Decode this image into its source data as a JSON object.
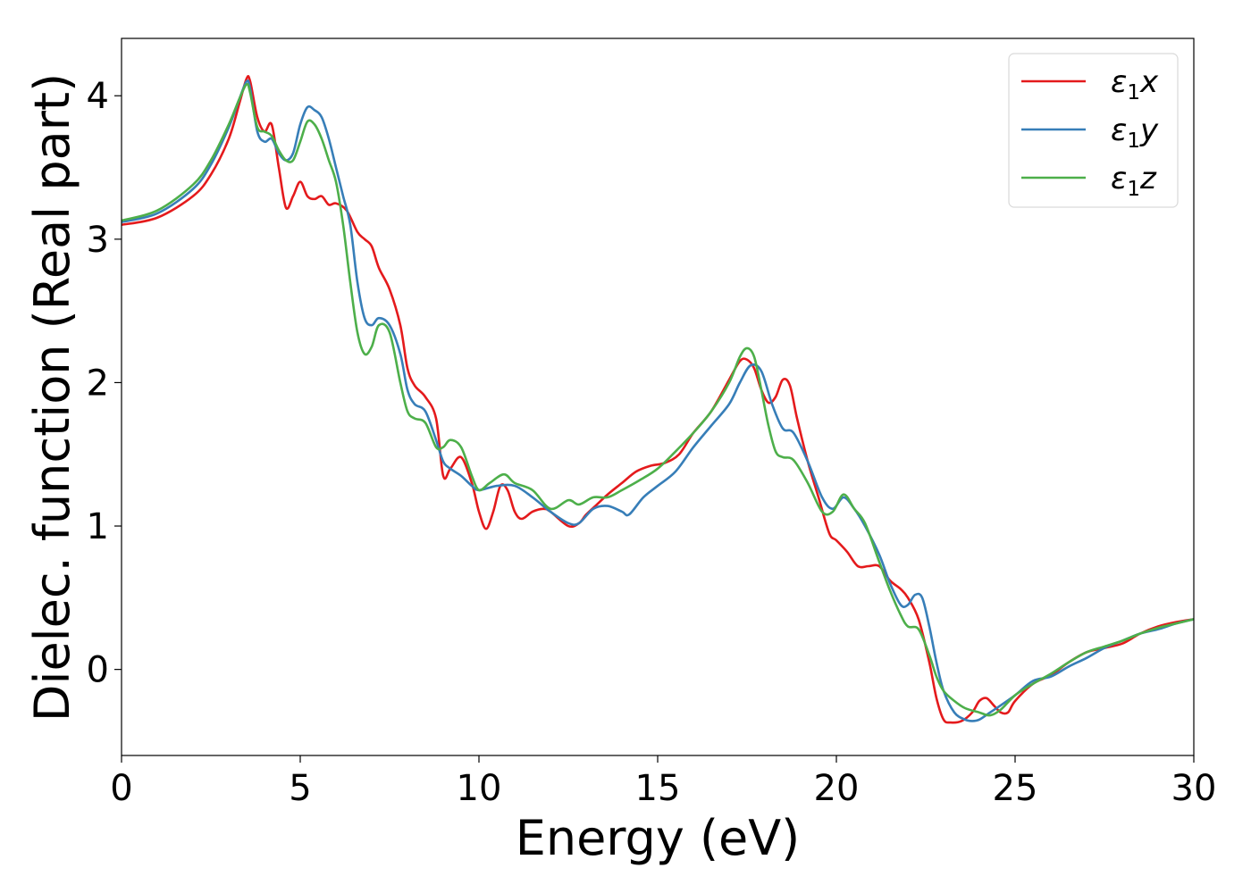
{
  "chart_data": {
    "type": "line",
    "title": "",
    "xlabel": "Energy (eV)",
    "ylabel": "Dielec. function (Real part)",
    "xlim": [
      0,
      30
    ],
    "ylim": [
      -0.6,
      4.4
    ],
    "xticks": [
      0,
      5,
      10,
      15,
      20,
      25,
      30
    ],
    "yticks": [
      0,
      1,
      2,
      3,
      4
    ],
    "grid": false,
    "legend_position": "top-right",
    "series": [
      {
        "name": "ε₁x",
        "legend_base": "ε",
        "legend_sub": "1",
        "legend_var": "x",
        "color": "#e41a1c",
        "x": [
          0,
          1,
          2,
          2.5,
          3,
          3.3,
          3.5,
          3.6,
          3.8,
          4.0,
          4.2,
          4.4,
          4.6,
          4.8,
          5.0,
          5.2,
          5.4,
          5.6,
          5.8,
          6.0,
          6.3,
          6.6,
          6.8,
          7.0,
          7.2,
          7.5,
          7.8,
          8.0,
          8.2,
          8.5,
          8.8,
          9.0,
          9.2,
          9.5,
          9.8,
          10.0,
          10.2,
          10.4,
          10.6,
          10.8,
          11.0,
          11.2,
          11.5,
          11.8,
          12.0,
          12.5,
          12.8,
          13.0,
          13.3,
          13.6,
          14.0,
          14.4,
          14.8,
          15.2,
          15.6,
          16.0,
          16.5,
          17.0,
          17.3,
          17.5,
          17.7,
          17.9,
          18.1,
          18.3,
          18.5,
          18.7,
          18.9,
          19.2,
          19.5,
          19.8,
          20.0,
          20.3,
          20.6,
          20.9,
          21.2,
          21.5,
          21.8,
          22.0,
          22.3,
          22.6,
          22.8,
          23.0,
          23.2,
          23.5,
          23.8,
          24.0,
          24.2,
          24.4,
          24.6,
          24.8,
          25.0,
          25.5,
          26.0,
          26.5,
          27.0,
          27.5,
          28.0,
          28.5,
          29.0,
          29.5,
          30.0
        ],
        "y": [
          3.1,
          3.15,
          3.3,
          3.45,
          3.7,
          3.95,
          4.12,
          4.1,
          3.85,
          3.75,
          3.8,
          3.5,
          3.22,
          3.3,
          3.4,
          3.3,
          3.28,
          3.3,
          3.24,
          3.25,
          3.2,
          3.05,
          3.0,
          2.95,
          2.8,
          2.65,
          2.4,
          2.1,
          1.98,
          1.9,
          1.75,
          1.35,
          1.4,
          1.48,
          1.3,
          1.1,
          0.98,
          1.1,
          1.28,
          1.25,
          1.1,
          1.05,
          1.1,
          1.12,
          1.1,
          1.0,
          1.02,
          1.08,
          1.15,
          1.22,
          1.3,
          1.38,
          1.42,
          1.44,
          1.5,
          1.65,
          1.8,
          2.02,
          2.15,
          2.16,
          2.1,
          1.95,
          1.86,
          1.9,
          2.02,
          1.98,
          1.75,
          1.45,
          1.2,
          0.95,
          0.9,
          0.82,
          0.72,
          0.72,
          0.72,
          0.62,
          0.56,
          0.5,
          0.35,
          0.05,
          -0.2,
          -0.35,
          -0.37,
          -0.36,
          -0.3,
          -0.22,
          -0.2,
          -0.25,
          -0.3,
          -0.3,
          -0.22,
          -0.1,
          -0.04,
          0.05,
          0.12,
          0.15,
          0.18,
          0.25,
          0.3,
          0.33,
          0.35
        ]
      },
      {
        "name": "ε₁y",
        "legend_base": "ε",
        "legend_sub": "1",
        "legend_var": "y",
        "color": "#377eb8",
        "x": [
          0,
          1,
          2,
          2.5,
          3,
          3.3,
          3.5,
          3.6,
          3.8,
          4.0,
          4.2,
          4.4,
          4.6,
          4.8,
          5.0,
          5.2,
          5.4,
          5.6,
          5.8,
          6.0,
          6.2,
          6.4,
          6.6,
          6.8,
          7.0,
          7.2,
          7.5,
          7.8,
          8.0,
          8.2,
          8.5,
          8.8,
          9.0,
          9.2,
          9.5,
          9.8,
          10.0,
          10.5,
          11.0,
          11.5,
          12.0,
          12.5,
          12.8,
          13.2,
          13.6,
          14.0,
          14.2,
          14.6,
          15.0,
          15.5,
          16.0,
          16.5,
          17.0,
          17.3,
          17.6,
          17.9,
          18.2,
          18.5,
          18.8,
          19.2,
          19.6,
          19.9,
          20.2,
          20.5,
          20.8,
          21.2,
          21.5,
          21.8,
          22.0,
          22.2,
          22.4,
          22.6,
          22.8,
          23.0,
          23.3,
          23.6,
          23.8,
          24.0,
          24.3,
          24.6,
          25.0,
          25.5,
          26.0,
          26.5,
          27.0,
          27.5,
          28.0,
          28.5,
          29.0,
          29.5,
          30.0
        ],
        "y": [
          3.12,
          3.18,
          3.35,
          3.52,
          3.78,
          3.98,
          4.1,
          4.05,
          3.75,
          3.68,
          3.7,
          3.6,
          3.55,
          3.6,
          3.8,
          3.92,
          3.9,
          3.85,
          3.7,
          3.5,
          3.3,
          3.1,
          2.7,
          2.45,
          2.4,
          2.45,
          2.4,
          2.2,
          1.95,
          1.85,
          1.8,
          1.6,
          1.45,
          1.4,
          1.35,
          1.28,
          1.25,
          1.28,
          1.28,
          1.2,
          1.1,
          1.02,
          1.02,
          1.12,
          1.14,
          1.1,
          1.08,
          1.2,
          1.28,
          1.38,
          1.55,
          1.7,
          1.85,
          2.0,
          2.12,
          2.08,
          1.85,
          1.68,
          1.65,
          1.45,
          1.2,
          1.12,
          1.2,
          1.12,
          1.0,
          0.8,
          0.6,
          0.45,
          0.45,
          0.52,
          0.5,
          0.3,
          0.05,
          -0.15,
          -0.3,
          -0.35,
          -0.36,
          -0.35,
          -0.3,
          -0.25,
          -0.18,
          -0.08,
          -0.05,
          0.02,
          0.08,
          0.15,
          0.2,
          0.25,
          0.28,
          0.32,
          0.35
        ]
      },
      {
        "name": "ε₁z",
        "legend_base": "ε",
        "legend_sub": "1",
        "legend_var": "z",
        "color": "#4daf4a",
        "x": [
          0,
          1,
          2,
          2.5,
          3,
          3.3,
          3.5,
          3.6,
          3.8,
          4.0,
          4.2,
          4.4,
          4.6,
          4.8,
          5.0,
          5.2,
          5.4,
          5.6,
          5.8,
          6.0,
          6.2,
          6.4,
          6.6,
          6.8,
          7.0,
          7.2,
          7.5,
          7.8,
          8.0,
          8.2,
          8.5,
          8.8,
          9.0,
          9.2,
          9.5,
          9.8,
          10.0,
          10.3,
          10.7,
          11.0,
          11.5,
          12.0,
          12.5,
          12.8,
          13.2,
          13.6,
          14.0,
          14.5,
          15.0,
          15.5,
          16.0,
          16.5,
          17.0,
          17.3,
          17.5,
          17.7,
          17.9,
          18.1,
          18.3,
          18.5,
          18.8,
          19.2,
          19.6,
          19.9,
          20.2,
          20.5,
          20.8,
          21.2,
          21.5,
          21.8,
          22.0,
          22.3,
          22.6,
          22.8,
          23.0,
          23.3,
          23.6,
          24.0,
          24.3,
          24.6,
          25.0,
          25.5,
          26.0,
          26.5,
          27.0,
          27.5,
          28.0,
          28.5,
          29.0,
          29.5,
          30.0
        ],
        "y": [
          3.13,
          3.2,
          3.38,
          3.55,
          3.8,
          3.98,
          4.08,
          4.02,
          3.78,
          3.75,
          3.72,
          3.62,
          3.55,
          3.55,
          3.68,
          3.82,
          3.8,
          3.7,
          3.55,
          3.4,
          3.1,
          2.7,
          2.35,
          2.2,
          2.25,
          2.4,
          2.35,
          2.0,
          1.8,
          1.75,
          1.72,
          1.55,
          1.55,
          1.6,
          1.55,
          1.35,
          1.25,
          1.3,
          1.36,
          1.3,
          1.25,
          1.12,
          1.18,
          1.15,
          1.2,
          1.2,
          1.25,
          1.32,
          1.4,
          1.52,
          1.65,
          1.8,
          2.0,
          2.18,
          2.24,
          2.18,
          1.95,
          1.7,
          1.52,
          1.48,
          1.46,
          1.3,
          1.1,
          1.1,
          1.22,
          1.12,
          1.02,
          0.75,
          0.55,
          0.38,
          0.3,
          0.28,
          0.1,
          -0.05,
          -0.15,
          -0.22,
          -0.27,
          -0.3,
          -0.32,
          -0.28,
          -0.18,
          -0.1,
          -0.03,
          0.05,
          0.12,
          0.16,
          0.2,
          0.25,
          0.29,
          0.32,
          0.35
        ]
      }
    ]
  }
}
